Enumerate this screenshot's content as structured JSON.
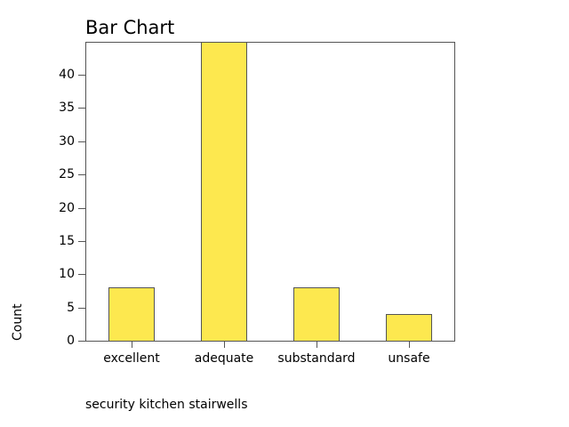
{
  "chart_data": {
    "type": "bar",
    "title": "Bar Chart",
    "categories": [
      "excellent",
      "adequate",
      "substandard",
      "unsafe"
    ],
    "values": [
      8,
      45,
      8,
      4
    ],
    "xlabel": "security kitchen stairwells",
    "ylabel": "Count",
    "ylim": [
      0,
      45
    ],
    "yticks": [
      0,
      5,
      10,
      15,
      20,
      25,
      30,
      35,
      40
    ],
    "bar_color": "#fde84f",
    "grid": false
  }
}
